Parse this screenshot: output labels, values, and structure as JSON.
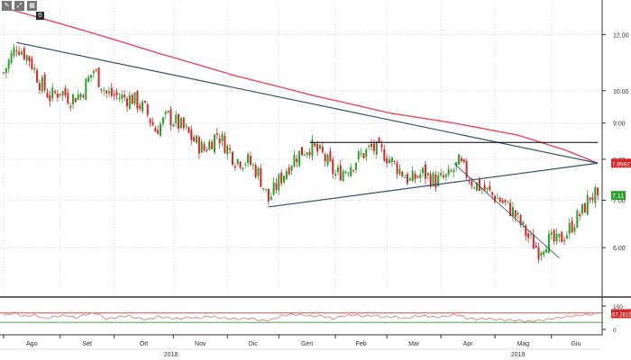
{
  "toolbar": {
    "icons": [
      "draw-pen-icon",
      "zoom-icon",
      "grid-icon"
    ],
    "box_label": "0"
  },
  "colors": {
    "background": "#ffffff",
    "grid": "#d8d8d8",
    "up": "#2ca02c",
    "down": "#d62728",
    "ma": "#e8475f",
    "trend": "#35506e",
    "resistance": "#000000",
    "osc": "#e07070",
    "osc_hi": "#c0392b",
    "osc_lo": "#2ca02c",
    "price_label": "#2ca02c",
    "ma_label": "#d62728"
  },
  "chart_data": {
    "type": "candlestick",
    "price_axis": {
      "range": [
        5.2,
        13.2
      ],
      "ticks": [
        "12.00",
        "10.00",
        "9.00",
        "8.00",
        "7.00",
        "6.00"
      ],
      "tick_values": [
        12.0,
        10.0,
        9.0,
        8.0,
        7.0,
        6.0
      ],
      "scale": "log"
    },
    "last_price": "7.11",
    "last_price_value": 7.11,
    "ma_value": "7.8982",
    "ma_value_num": 7.8982,
    "x_axis": {
      "months": [
        "Ago",
        "Set",
        "Ott",
        "Nov",
        "Dic",
        "Gen",
        "Feb",
        "Mar",
        "Apr",
        "Mag",
        "Giu"
      ],
      "month_start_index": [
        0,
        22,
        43,
        66,
        87,
        107,
        129,
        149,
        170,
        191,
        213
      ],
      "years": [
        "2018",
        "2019"
      ],
      "year_anchor_index": [
        65,
        200
      ]
    },
    "candle_count": 232,
    "price_path": [
      [
        0,
        10.6
      ],
      [
        3,
        11.2
      ],
      [
        5,
        11.6
      ],
      [
        10,
        11.1
      ],
      [
        14,
        10.3
      ],
      [
        18,
        9.8
      ],
      [
        22,
        10.0
      ],
      [
        26,
        9.75
      ],
      [
        30,
        9.9
      ],
      [
        35,
        10.7
      ],
      [
        40,
        9.9
      ],
      [
        45,
        9.8
      ],
      [
        50,
        9.75
      ],
      [
        55,
        9.4
      ],
      [
        59,
        8.8
      ],
      [
        64,
        9.2
      ],
      [
        69,
        8.9
      ],
      [
        74,
        8.5
      ],
      [
        78,
        8.25
      ],
      [
        83,
        8.7
      ],
      [
        87,
        8.3
      ],
      [
        90,
        8.0
      ],
      [
        95,
        7.95
      ],
      [
        99,
        7.65
      ],
      [
        103,
        7.0
      ],
      [
        108,
        7.55
      ],
      [
        113,
        8.05
      ],
      [
        119,
        8.35
      ],
      [
        124,
        8.1
      ],
      [
        129,
        7.6
      ],
      [
        133,
        7.75
      ],
      [
        138,
        8.05
      ],
      [
        143,
        8.3
      ],
      [
        148,
        8.15
      ],
      [
        153,
        7.8
      ],
      [
        158,
        7.45
      ],
      [
        163,
        7.65
      ],
      [
        168,
        7.45
      ],
      [
        173,
        7.55
      ],
      [
        177,
        7.9
      ],
      [
        182,
        7.45
      ],
      [
        188,
        7.2
      ],
      [
        193,
        7.0
      ],
      [
        198,
        6.75
      ],
      [
        204,
        6.2
      ],
      [
        208,
        5.95
      ],
      [
        211,
        6.15
      ],
      [
        215,
        6.1
      ],
      [
        219,
        6.3
      ],
      [
        222,
        6.55
      ],
      [
        225,
        6.75
      ],
      [
        228,
        7.1
      ],
      [
        231,
        7.11
      ]
    ],
    "ma_path": [
      [
        0,
        13.1
      ],
      [
        30,
        12.2
      ],
      [
        60,
        11.3
      ],
      [
        90,
        10.5
      ],
      [
        120,
        9.85
      ],
      [
        150,
        9.3
      ],
      [
        175,
        9.0
      ],
      [
        200,
        8.65
      ],
      [
        218,
        8.25
      ],
      [
        231,
        7.8982
      ]
    ],
    "trendlines": [
      {
        "start": [
          5,
          11.7
        ],
        "end": [
          231,
          7.9
        ]
      },
      {
        "start": [
          103,
          6.85
        ],
        "end": [
          231,
          7.9
        ]
      },
      {
        "start": [
          175,
          7.9
        ],
        "end": [
          216,
          5.8
        ]
      }
    ],
    "resistance_line": {
      "start": [
        119,
        8.45
      ],
      "end": [
        231,
        8.45
      ],
      "value": 8.45
    },
    "oscillator": {
      "ticks": [
        "100",
        "0"
      ],
      "tick_values": [
        100,
        0
      ],
      "last_value": "67.2815",
      "last_value_num": 67.2815,
      "upper_level": 70,
      "lower_level": 30,
      "path": [
        [
          0,
          58
        ],
        [
          4,
          72
        ],
        [
          8,
          55
        ],
        [
          12,
          62
        ],
        [
          16,
          46
        ],
        [
          20,
          55
        ],
        [
          24,
          60
        ],
        [
          28,
          50
        ],
        [
          32,
          64
        ],
        [
          36,
          70
        ],
        [
          40,
          44
        ],
        [
          44,
          52
        ],
        [
          48,
          58
        ],
        [
          52,
          48
        ],
        [
          56,
          42
        ],
        [
          60,
          55
        ],
        [
          64,
          50
        ],
        [
          68,
          45
        ],
        [
          72,
          52
        ],
        [
          76,
          48
        ],
        [
          80,
          56
        ],
        [
          84,
          50
        ],
        [
          88,
          46
        ],
        [
          92,
          44
        ],
        [
          96,
          48
        ],
        [
          100,
          38
        ],
        [
          104,
          40
        ],
        [
          108,
          58
        ],
        [
          112,
          64
        ],
        [
          116,
          62
        ],
        [
          120,
          56
        ],
        [
          124,
          58
        ],
        [
          128,
          46
        ],
        [
          132,
          58
        ],
        [
          136,
          62
        ],
        [
          140,
          56
        ],
        [
          144,
          60
        ],
        [
          148,
          52
        ],
        [
          152,
          54
        ],
        [
          156,
          46
        ],
        [
          160,
          56
        ],
        [
          164,
          58
        ],
        [
          168,
          52
        ],
        [
          172,
          56
        ],
        [
          176,
          64
        ],
        [
          180,
          48
        ],
        [
          184,
          44
        ],
        [
          188,
          46
        ],
        [
          192,
          42
        ],
        [
          196,
          40
        ],
        [
          200,
          38
        ],
        [
          204,
          34
        ],
        [
          208,
          38
        ],
        [
          212,
          44
        ],
        [
          216,
          50
        ],
        [
          220,
          56
        ],
        [
          224,
          60
        ],
        [
          228,
          64
        ],
        [
          231,
          67.28
        ]
      ]
    }
  }
}
